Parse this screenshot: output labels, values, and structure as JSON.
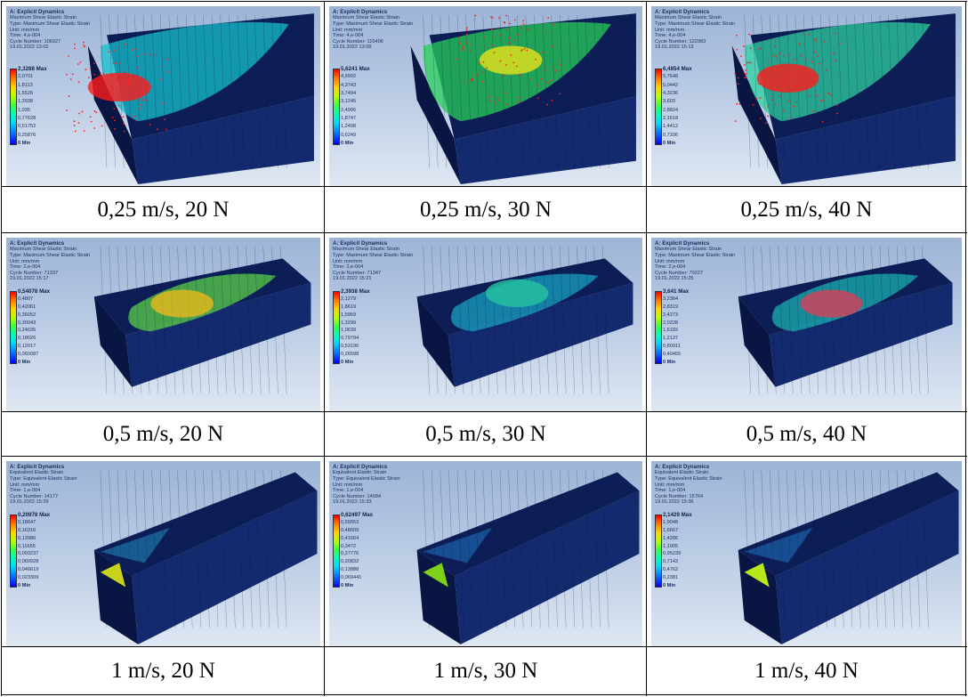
{
  "rows": [
    {
      "cells": [
        {
          "caption": "0,25 m/s, 20 N",
          "info": [
            "A: Explicit Dynamics",
            "Maximum Shear Elastic Strain",
            "Type: Maximum Shear Elastic Strain",
            "Unit: mm/mm",
            "Time: 4,e-004",
            "Cycle Number: 106927",
            "19.01.2022 13:02"
          ],
          "legend": [
            "2,3288 Max",
            "2,0701",
            "1,8113",
            "1,5526",
            "1,2938",
            "1,035",
            "0,77628",
            "0,51752",
            "0,25876",
            "0 Min"
          ],
          "hot": "#ff1a1a",
          "mid": "#16c0cc"
        },
        {
          "caption": "0,25 m/s, 30 N",
          "info": [
            "A: Explicit Dynamics",
            "Maximum Shear Elastic Strain",
            "Type: Maximum Shear Elastic Strain",
            "Unit: mm/mm",
            "Time: 4,e-004",
            "Cycle Number: 115406",
            "19.01.2022 13:09"
          ],
          "legend": [
            "5,6241 Max",
            "4,9992",
            "4,3743",
            "3,7494",
            "3,1245",
            "2,4996",
            "1,8747",
            "1,2498",
            "0,6249",
            "0 Min"
          ],
          "hot": "#e9e21a",
          "mid": "#27d05a"
        },
        {
          "caption": "0,25 m/s, 40 N",
          "info": [
            "A: Explicit Dynamics",
            "Maximum Shear Elastic Strain",
            "Type: Maximum Shear Elastic Strain",
            "Unit: mm/mm",
            "Time: 4,e-004",
            "Cycle Number: 122983",
            "19.01.2022 15:13"
          ],
          "legend": [
            "6,4854 Max",
            "5,7648",
            "5,0442",
            "4,3236",
            "3,603",
            "2,8824",
            "2,1618",
            "1,4412",
            "0,7206",
            "0 Min"
          ],
          "hot": "#ff1a1a",
          "mid": "#2fd0a0"
        }
      ]
    },
    {
      "cells": [
        {
          "caption": "0,5 m/s, 20 N",
          "info": [
            "A: Explicit Dynamics",
            "Maximum Shear Elastic Strain",
            "Type: Maximum Shear Elastic Strain",
            "Unit: mm/mm",
            "Time: 2,e-004",
            "Cycle Number: 71337",
            "19.01.2022 15:17"
          ],
          "legend": [
            "0,54078 Max",
            "0,4807",
            "0,42061",
            "0,36052",
            "0,30043",
            "0,24035",
            "0,18026",
            "0,12017",
            "0,060087",
            "0 Min"
          ],
          "hot": "#e8b81a",
          "mid": "#5ad04a"
        },
        {
          "caption": "0,5 m/s, 30 N",
          "info": [
            "A: Explicit Dynamics",
            "Maximum Shear Elastic Strain",
            "Type: Maximum Shear Elastic Strain",
            "Unit: mm/mm",
            "Time: 2,e-004",
            "Cycle Number: 71347",
            "19.01.2022 15:21"
          ],
          "legend": [
            "2,3938 Max",
            "2,1279",
            "1,8619",
            "1,5959",
            "1,3299",
            "1,0639",
            "0,79794",
            "0,53196",
            "0,26598",
            "0 Min"
          ],
          "hot": "#26c4a0",
          "mid": "#1aa0c0"
        },
        {
          "caption": "0,5 m/s, 40 N",
          "info": [
            "A: Explicit Dynamics",
            "Maximum Shear Elastic Strain",
            "Type: Maximum Shear Elastic Strain",
            "Unit: mm/mm",
            "Time: 2,e-004",
            "Cycle Number: 70227",
            "19.01.2022 15:25"
          ],
          "legend": [
            "3,641 Max",
            "3,2364",
            "2,8319",
            "2,4273",
            "2,0228",
            "1,6182",
            "1,2137",
            "0,80911",
            "0,40455",
            "0 Min"
          ],
          "hot": "#d8405a",
          "mid": "#1ab0b0"
        }
      ]
    },
    {
      "cells": [
        {
          "caption": "1 m/s, 20 N",
          "info": [
            "A: Explicit Dynamics",
            "Equivalent Elastic Strain",
            "Type: Equivalent Elastic Strain",
            "Unit: mm/mm",
            "Time: 1,e-004",
            "Cycle Number: 14177",
            "19.01.2022 15:29"
          ],
          "legend": [
            "0,20978 Max",
            "0,18647",
            "0,16316",
            "0,13986",
            "0,11655",
            "0,093237",
            "0,069928",
            "0,046619",
            "0,023309",
            "0 Min"
          ],
          "hot": "#c9d21a",
          "mid": "#1a6aa0"
        },
        {
          "caption": "1 m/s, 30 N",
          "info": [
            "A: Explicit Dynamics",
            "Equivalent Elastic Strain",
            "Type: Equivalent Elastic Strain",
            "Unit: mm/mm",
            "Time: 1,e-004",
            "Cycle Number: 14584",
            "19.01.2022 15:33"
          ],
          "legend": [
            "0,62497 Max",
            "0,55553",
            "0,48609",
            "0,41664",
            "0,3472",
            "0,27776",
            "0,20832",
            "0,13888",
            "0,069441",
            "0 Min"
          ],
          "hot": "#7fd01a",
          "mid": "#1a5aa0"
        },
        {
          "caption": "1 m/s, 40 N",
          "info": [
            "A: Explicit Dynamics",
            "Equivalent Elastic Strain",
            "Type: Equivalent Elastic Strain",
            "Unit: mm/mm",
            "Time: 1,e-004",
            "Cycle Number: 15764",
            "19.01.2022 15:36"
          ],
          "legend": [
            "2,1429 Max",
            "1,9048",
            "1,6667",
            "1,4286",
            "1,1905",
            "0,95239",
            "0,7143",
            "0,4762",
            "0,2381",
            "0 Min"
          ],
          "hot": "#b8e81a",
          "mid": "#1a5aa0"
        }
      ]
    }
  ]
}
